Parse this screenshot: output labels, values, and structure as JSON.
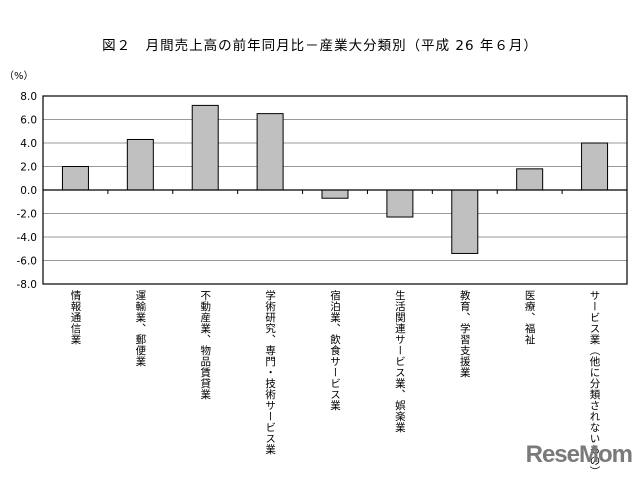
{
  "chart_data": {
    "type": "bar",
    "title": "図２　月間売上高の前年同月比－産業大分類別（平成 26 年６月）",
    "ylabel": "（%）",
    "xlabel": "",
    "categories": [
      "情報通信業",
      "運輸業、郵便業",
      "不動産業、物品賃貸業",
      "学術研究、専門・技術サービス業",
      "宿泊業、飲食サービス業",
      "生活関連サービス業、娯楽業",
      "教育、学習支援業",
      "医療、福祉",
      "サービス業（他に分類されないもの）"
    ],
    "values": [
      2.0,
      4.3,
      7.2,
      6.5,
      -0.7,
      -2.3,
      -5.4,
      1.8,
      4.0
    ],
    "ylim": [
      -8.0,
      8.0
    ],
    "yticks": [
      "8.0",
      "6.0",
      "4.0",
      "2.0",
      "0.0",
      "-2.0",
      "-4.0",
      "-6.0",
      "-8.0"
    ],
    "grid": true,
    "bar_color": "#c0c0c0"
  },
  "watermark": "ReseMom"
}
